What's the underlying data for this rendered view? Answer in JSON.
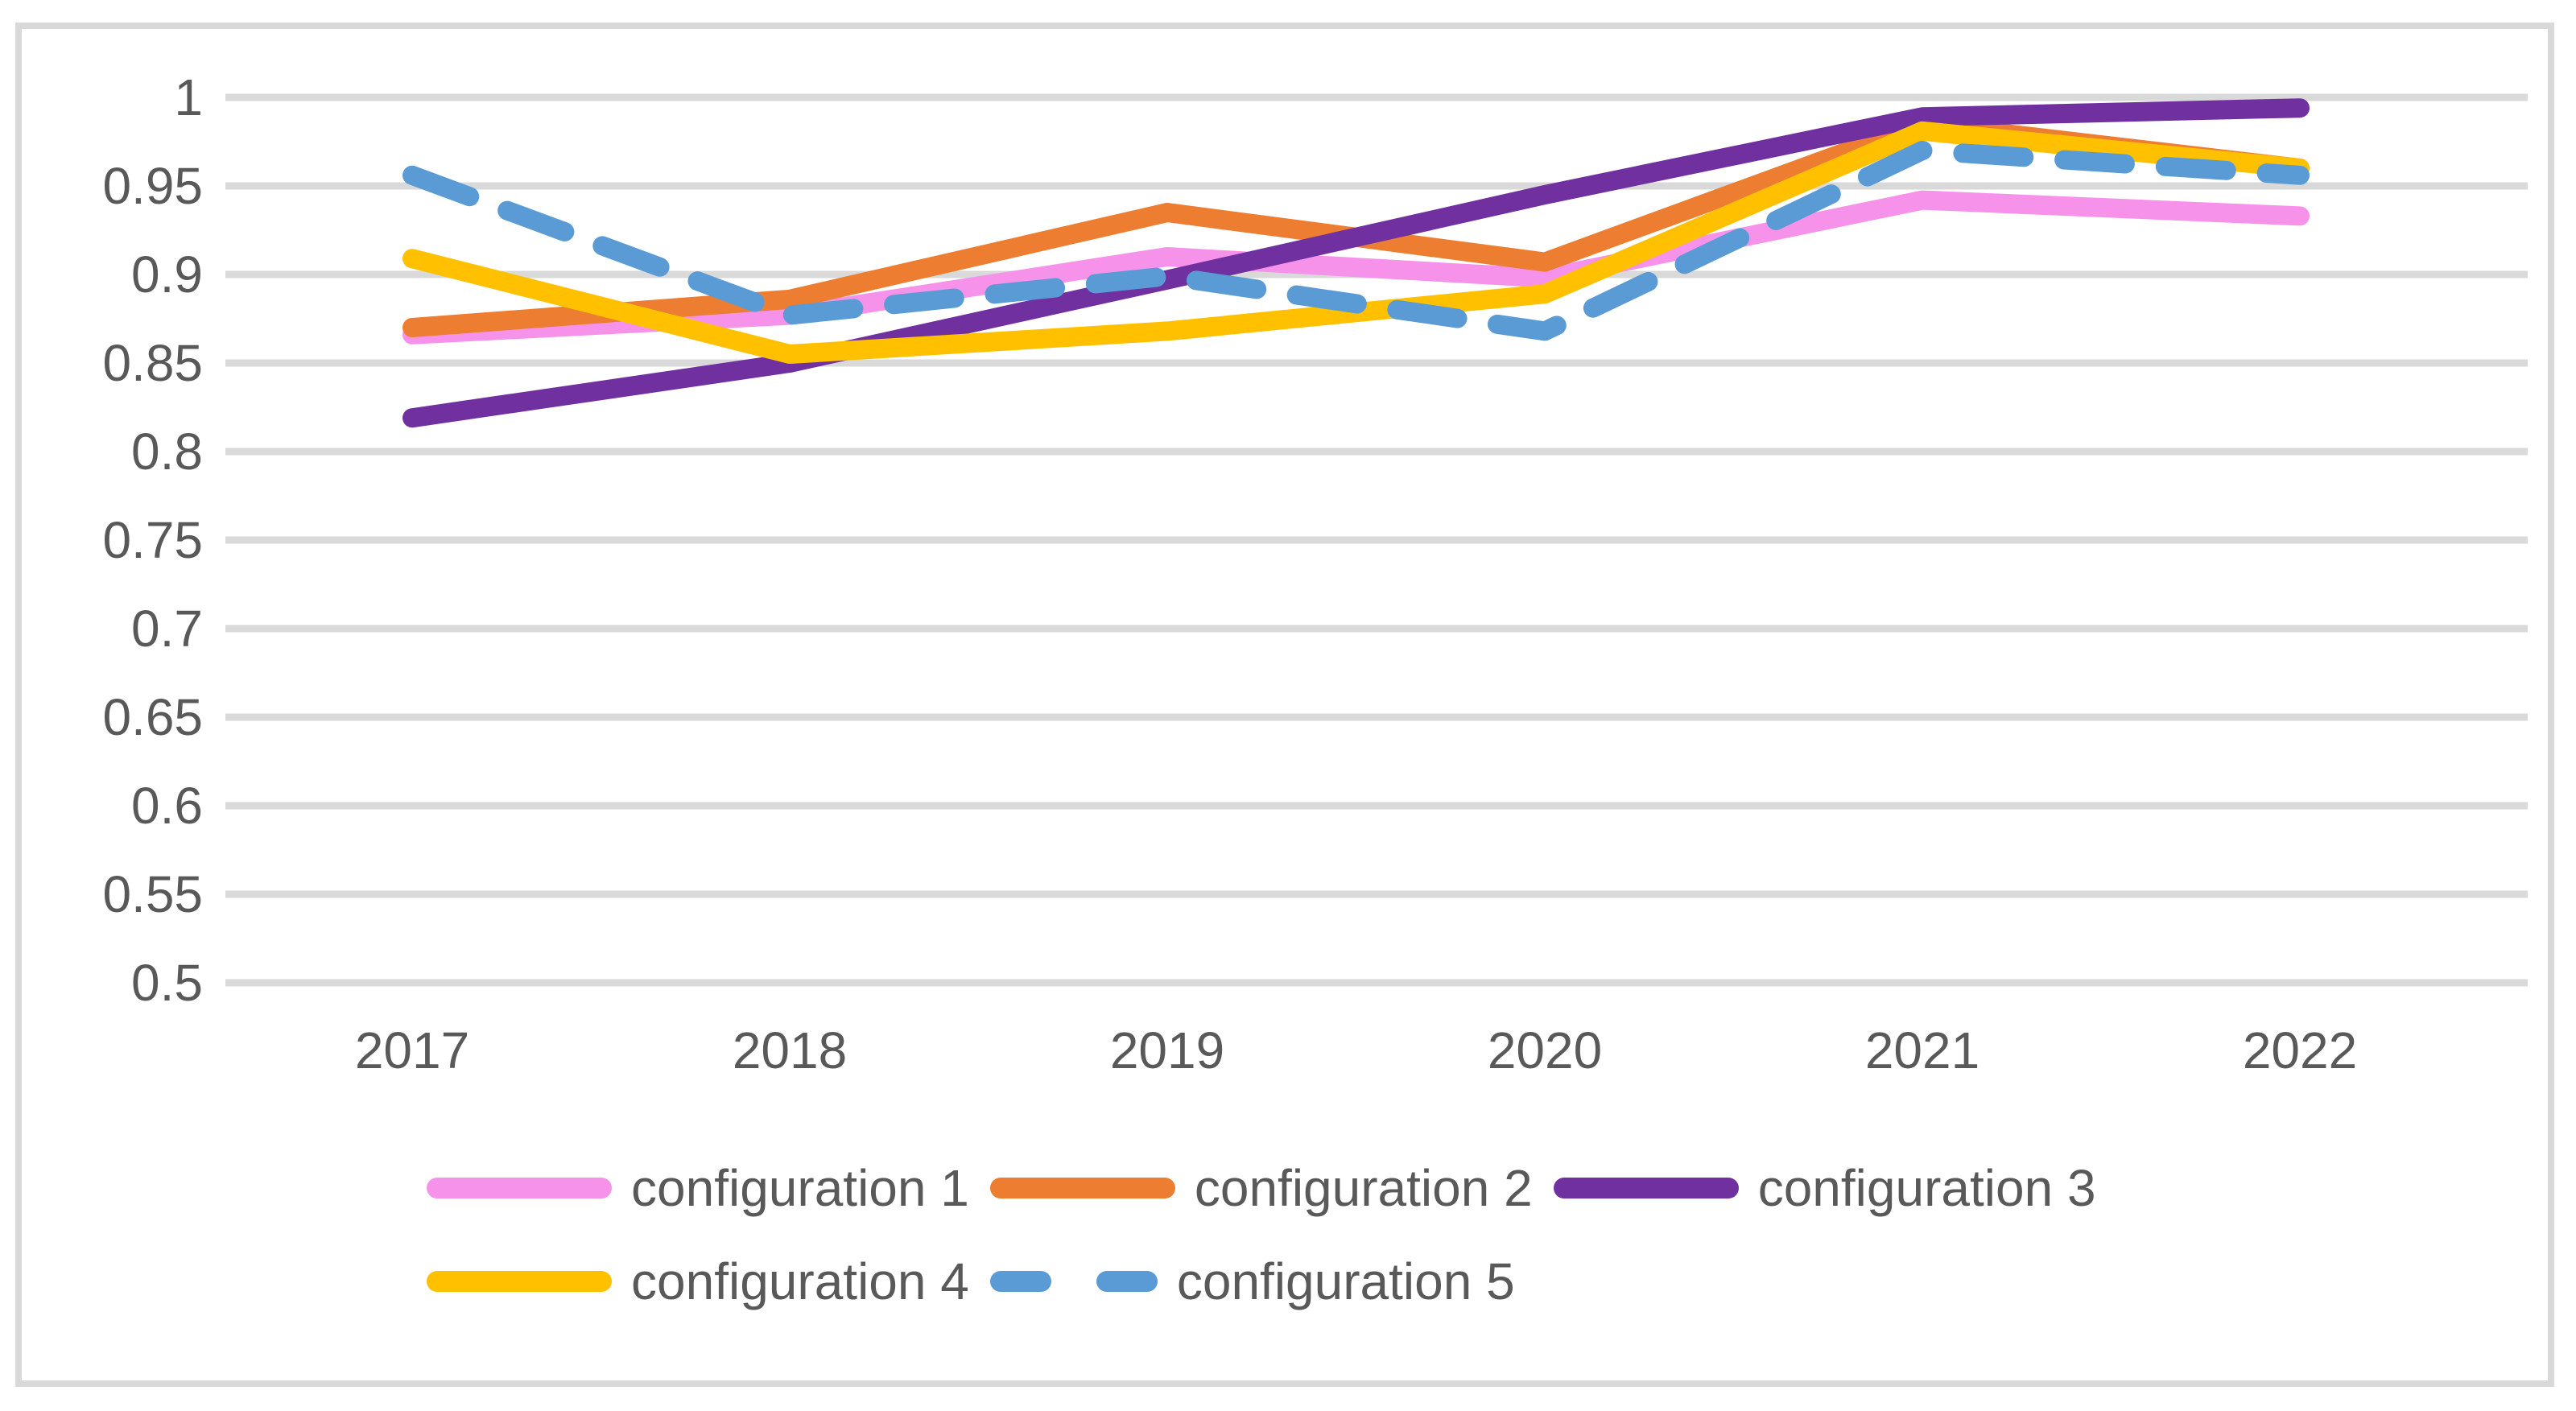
{
  "frame": {
    "border_color": "#D9D9D9",
    "background": "#ffffff"
  },
  "axis": {
    "text_color": "#595959",
    "grid_color": "#D9D9D9",
    "y_tick_labels": [
      "1",
      "0.95",
      "0.9",
      "0.85",
      "0.8",
      "0.75",
      "0.7",
      "0.65",
      "0.6",
      "0.55",
      "0.5"
    ],
    "x_tick_labels": [
      "2017",
      "2018",
      "2019",
      "2020",
      "2021",
      "2022"
    ]
  },
  "chart_data": {
    "type": "line",
    "title": "",
    "xlabel": "",
    "ylabel": "",
    "x": [
      2017,
      2018,
      2019,
      2020,
      2021,
      2022
    ],
    "ylim": [
      0.5,
      1.0
    ],
    "ytick_step": 0.05,
    "grid": "horizontal",
    "legend_position": "bottom",
    "series": [
      {
        "name": "configuration 1",
        "color": "#F792EB",
        "dash": false,
        "values": [
          0.866,
          0.877,
          0.91,
          0.898,
          0.942,
          0.933
        ]
      },
      {
        "name": "configuration 2",
        "color": "#ED7D31",
        "dash": false,
        "values": [
          0.87,
          0.886,
          0.935,
          0.907,
          0.985,
          0.96
        ]
      },
      {
        "name": "configuration 3",
        "color": "#7030A0",
        "dash": false,
        "values": [
          0.819,
          0.85,
          0.897,
          0.945,
          0.989,
          0.994
        ]
      },
      {
        "name": "configuration 4",
        "color": "#FFC000",
        "dash": false,
        "values": [
          0.909,
          0.855,
          0.868,
          0.889,
          0.981,
          0.96
        ]
      },
      {
        "name": "configuration 5",
        "color": "#5B9BD5",
        "dash": true,
        "values": [
          0.956,
          0.877,
          0.899,
          0.868,
          0.97,
          0.956
        ]
      }
    ]
  },
  "legend": {
    "rows": [
      [
        "configuration 1",
        "configuration 2",
        "configuration 3"
      ],
      [
        "configuration 4",
        "configuration 5"
      ]
    ]
  }
}
